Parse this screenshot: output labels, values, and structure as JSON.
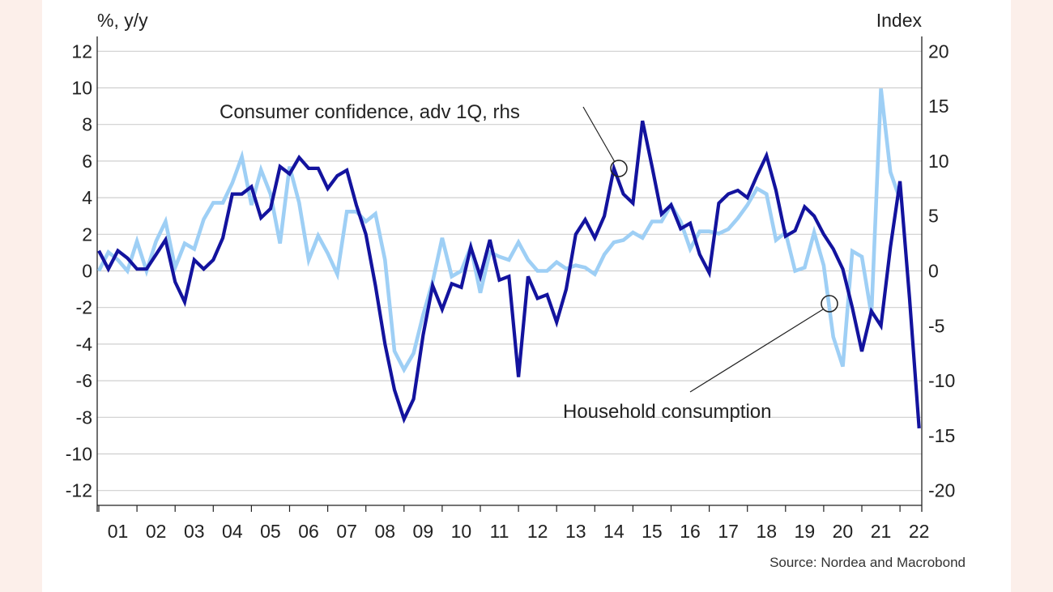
{
  "chart_data": {
    "type": "line",
    "left_axis_label": "%, y/y",
    "right_axis_label": "Index",
    "left_ticks": [
      "12",
      "10",
      "8",
      "6",
      "4",
      "2",
      "0",
      "-2",
      "-4",
      "-6",
      "-8",
      "-10",
      "-12"
    ],
    "right_ticks": [
      "20",
      "15",
      "10",
      "5",
      "0",
      "-5",
      "-10",
      "-15",
      "-20"
    ],
    "x_ticks": [
      "01",
      "02",
      "03",
      "04",
      "05",
      "06",
      "07",
      "08",
      "09",
      "10",
      "11",
      "12",
      "13",
      "14",
      "15",
      "16",
      "17",
      "18",
      "19",
      "20",
      "21",
      "22"
    ],
    "ylim_left": [
      -12.7,
      12.7
    ],
    "ylim_right": [
      -21.2,
      21.2
    ],
    "x_range": [
      2001,
      2022.5
    ],
    "grid": "horizontal",
    "annotations": {
      "confidence": "Consumer confidence, adv 1Q, rhs",
      "consumption": "Household consumption"
    },
    "source": "Source: Nordea and Macrobond",
    "colors": {
      "consumption": "#13139e",
      "confidence": "#9ecff5",
      "grid": "#cfcfcf"
    },
    "series": [
      {
        "id": "consumption",
        "axis": "left",
        "points": [
          [
            2001.0,
            1.1
          ],
          [
            2001.25,
            0.1
          ],
          [
            2001.5,
            1.1
          ],
          [
            2001.75,
            0.7
          ],
          [
            2002.0,
            0.1
          ],
          [
            2002.25,
            0.1
          ],
          [
            2002.5,
            0.9
          ],
          [
            2002.75,
            1.7
          ],
          [
            2003.0,
            -0.6
          ],
          [
            2003.25,
            -1.7
          ],
          [
            2003.5,
            0.6
          ],
          [
            2003.75,
            0.1
          ],
          [
            2004.0,
            0.6
          ],
          [
            2004.25,
            1.8
          ],
          [
            2004.5,
            4.2
          ],
          [
            2004.75,
            4.2
          ],
          [
            2005.0,
            4.6
          ],
          [
            2005.25,
            2.9
          ],
          [
            2005.5,
            3.4
          ],
          [
            2005.75,
            5.7
          ],
          [
            2006.0,
            5.3
          ],
          [
            2006.25,
            6.2
          ],
          [
            2006.5,
            5.6
          ],
          [
            2006.75,
            5.6
          ],
          [
            2007.0,
            4.5
          ],
          [
            2007.25,
            5.2
          ],
          [
            2007.5,
            5.5
          ],
          [
            2007.75,
            3.6
          ],
          [
            2008.0,
            2.0
          ],
          [
            2008.25,
            -0.8
          ],
          [
            2008.5,
            -4.0
          ],
          [
            2008.75,
            -6.5
          ],
          [
            2009.0,
            -8.1
          ],
          [
            2009.25,
            -7.0
          ],
          [
            2009.5,
            -3.5
          ],
          [
            2009.75,
            -0.8
          ],
          [
            2010.0,
            -2.1
          ],
          [
            2010.25,
            -0.7
          ],
          [
            2010.5,
            -0.9
          ],
          [
            2010.75,
            1.3
          ],
          [
            2011.0,
            -0.3
          ],
          [
            2011.25,
            1.7
          ],
          [
            2011.5,
            -0.5
          ],
          [
            2011.75,
            -0.3
          ],
          [
            2012.0,
            -5.8
          ],
          [
            2012.25,
            -0.3
          ],
          [
            2012.5,
            -1.5
          ],
          [
            2012.75,
            -1.3
          ],
          [
            2013.0,
            -2.8
          ],
          [
            2013.25,
            -1.0
          ],
          [
            2013.5,
            2.0
          ],
          [
            2013.75,
            2.8
          ],
          [
            2014.0,
            1.8
          ],
          [
            2014.25,
            3.0
          ],
          [
            2014.5,
            5.6
          ],
          [
            2014.75,
            4.2
          ],
          [
            2015.0,
            3.7
          ],
          [
            2015.25,
            8.2
          ],
          [
            2015.5,
            5.7
          ],
          [
            2015.75,
            3.1
          ],
          [
            2016.0,
            3.6
          ],
          [
            2016.25,
            2.3
          ],
          [
            2016.5,
            2.6
          ],
          [
            2016.75,
            0.9
          ],
          [
            2017.0,
            -0.1
          ],
          [
            2017.25,
            3.7
          ],
          [
            2017.5,
            4.2
          ],
          [
            2017.75,
            4.4
          ],
          [
            2018.0,
            4.0
          ],
          [
            2018.25,
            5.2
          ],
          [
            2018.5,
            6.3
          ],
          [
            2018.75,
            4.4
          ],
          [
            2019.0,
            1.9
          ],
          [
            2019.25,
            2.2
          ],
          [
            2019.5,
            3.5
          ],
          [
            2019.75,
            3.0
          ],
          [
            2020.0,
            2.0
          ],
          [
            2020.25,
            1.2
          ],
          [
            2020.5,
            0.1
          ],
          [
            2020.75,
            -2.0
          ],
          [
            2021.0,
            -4.4
          ],
          [
            2021.25,
            -2.2
          ],
          [
            2021.5,
            -3.0
          ],
          [
            2021.75,
            1.3
          ],
          [
            2022.0,
            4.9
          ],
          [
            2022.25,
            -1.5
          ],
          [
            2022.5,
            -8.6
          ]
        ]
      },
      {
        "id": "confidence",
        "axis": "right",
        "points": [
          [
            2001.0,
            0.0
          ],
          [
            2001.25,
            1.7
          ],
          [
            2001.5,
            1.0
          ],
          [
            2001.75,
            0.0
          ],
          [
            2002.0,
            2.7
          ],
          [
            2002.25,
            0.0
          ],
          [
            2002.5,
            2.7
          ],
          [
            2002.75,
            4.5
          ],
          [
            2003.0,
            0.3
          ],
          [
            2003.25,
            2.5
          ],
          [
            2003.5,
            2.0
          ],
          [
            2003.75,
            4.7
          ],
          [
            2004.0,
            6.2
          ],
          [
            2004.25,
            6.2
          ],
          [
            2004.5,
            8.0
          ],
          [
            2004.75,
            10.4
          ],
          [
            2005.0,
            6.0
          ],
          [
            2005.25,
            9.2
          ],
          [
            2005.5,
            7.0
          ],
          [
            2005.75,
            2.5
          ],
          [
            2006.0,
            9.5
          ],
          [
            2006.25,
            6.2
          ],
          [
            2006.5,
            1.0
          ],
          [
            2006.75,
            3.2
          ],
          [
            2007.0,
            1.6
          ],
          [
            2007.25,
            -0.3
          ],
          [
            2007.5,
            5.4
          ],
          [
            2007.75,
            5.4
          ],
          [
            2008.0,
            4.5
          ],
          [
            2008.25,
            5.2
          ],
          [
            2008.5,
            1.0
          ],
          [
            2008.75,
            -7.3
          ],
          [
            2009.0,
            -9.0
          ],
          [
            2009.25,
            -7.5
          ],
          [
            2009.5,
            -4.0
          ],
          [
            2009.75,
            -1.0
          ],
          [
            2010.0,
            3.0
          ],
          [
            2010.25,
            -0.5
          ],
          [
            2010.5,
            0.0
          ],
          [
            2010.75,
            2.2
          ],
          [
            2011.0,
            -2.0
          ],
          [
            2011.25,
            1.7
          ],
          [
            2011.5,
            1.3
          ],
          [
            2011.75,
            1.0
          ],
          [
            2012.0,
            2.6
          ],
          [
            2012.25,
            1.0
          ],
          [
            2012.5,
            0.0
          ],
          [
            2012.75,
            0.0
          ],
          [
            2013.0,
            0.8
          ],
          [
            2013.25,
            0.2
          ],
          [
            2013.5,
            0.5
          ],
          [
            2013.75,
            0.3
          ],
          [
            2014.0,
            -0.3
          ],
          [
            2014.25,
            1.5
          ],
          [
            2014.5,
            2.6
          ],
          [
            2014.75,
            2.8
          ],
          [
            2015.0,
            3.5
          ],
          [
            2015.25,
            3.0
          ],
          [
            2015.5,
            4.5
          ],
          [
            2015.75,
            4.5
          ],
          [
            2016.0,
            6.0
          ],
          [
            2016.25,
            4.5
          ],
          [
            2016.5,
            2.0
          ],
          [
            2016.75,
            3.6
          ],
          [
            2017.0,
            3.6
          ],
          [
            2017.25,
            3.4
          ],
          [
            2017.5,
            3.8
          ],
          [
            2017.75,
            4.8
          ],
          [
            2018.0,
            6.0
          ],
          [
            2018.25,
            7.5
          ],
          [
            2018.5,
            7.0
          ],
          [
            2018.75,
            2.8
          ],
          [
            2019.0,
            3.5
          ],
          [
            2019.25,
            0.0
          ],
          [
            2019.5,
            0.3
          ],
          [
            2019.75,
            3.5
          ],
          [
            2020.0,
            0.5
          ],
          [
            2020.25,
            -6.0
          ],
          [
            2020.5,
            -8.7
          ],
          [
            2020.75,
            1.8
          ],
          [
            2021.0,
            1.3
          ],
          [
            2021.25,
            -4.0
          ],
          [
            2021.5,
            16.6
          ],
          [
            2021.75,
            9.0
          ],
          [
            2022.0,
            6.5
          ]
        ]
      }
    ]
  }
}
